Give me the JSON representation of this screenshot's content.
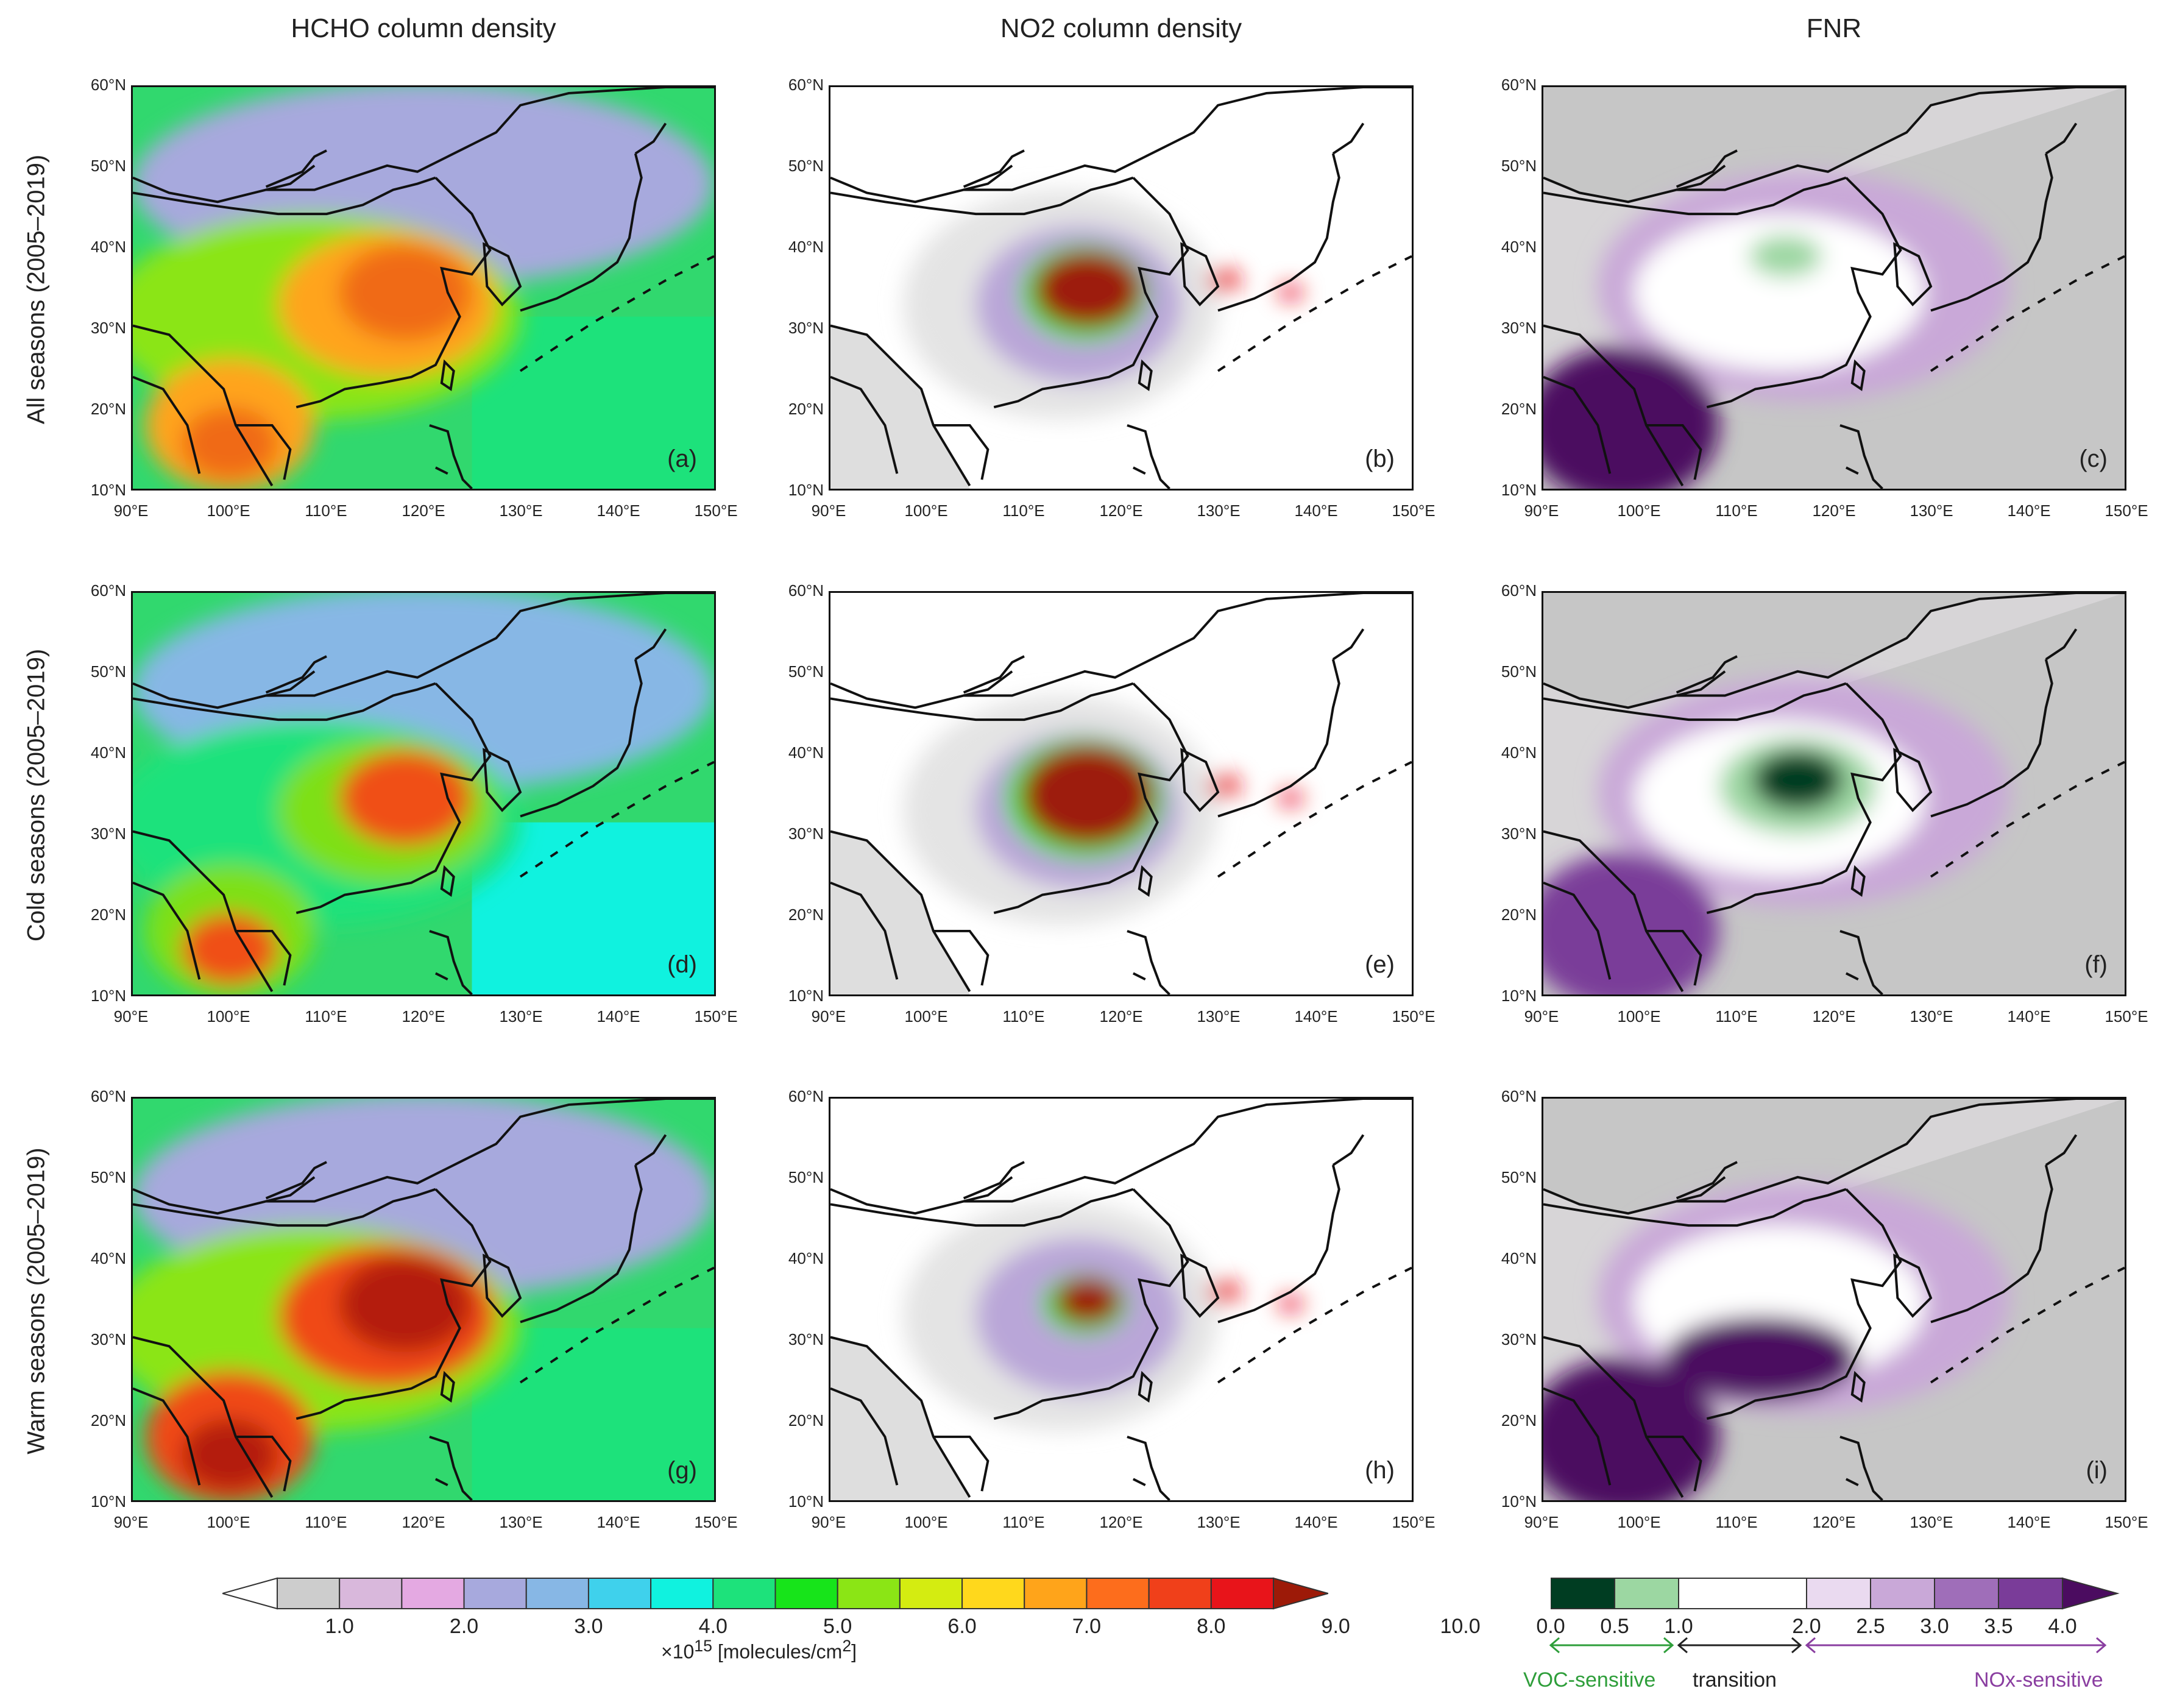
{
  "chart_data": {
    "type": "heatmap",
    "layout": "3x3 map panels",
    "column_titles": [
      "HCHO column density",
      "NO2 column density",
      "FNR"
    ],
    "row_titles": [
      "All seasons (2005–2019)",
      "Cold seasons (2005–2019)",
      "Warm seasons (2005–2019)"
    ],
    "panel_labels": [
      [
        "(a)",
        "(b)",
        "(c)"
      ],
      [
        "(d)",
        "(e)",
        "(f)"
      ],
      [
        "(g)",
        "(h)",
        "(i)"
      ]
    ],
    "xaxis": {
      "ticks": [
        "90°E",
        "100°E",
        "110°E",
        "120°E",
        "130°E",
        "140°E",
        "150°E"
      ],
      "range": [
        90,
        150
      ]
    },
    "yaxis": {
      "ticks": [
        "60°N",
        "50°N",
        "40°N",
        "30°N",
        "20°N",
        "10°N"
      ],
      "range": [
        10,
        60
      ]
    },
    "colorbar_density": {
      "labels": [
        "1.0",
        "2.0",
        "3.0",
        "4.0",
        "5.0",
        "6.0",
        "7.0",
        "8.0",
        "9.0",
        "10.0"
      ],
      "colors": [
        "#f2f2f2",
        "#cdcdcd",
        "#d9b8dc",
        "#e4a9e2",
        "#a7a9dd",
        "#87b7e5",
        "#3fd1ec",
        "#10f2df",
        "#1de27b",
        "#17e41a",
        "#8be515",
        "#d4ec11",
        "#ffd81c",
        "#ffa41a",
        "#fd6d1c",
        "#f0401a",
        "#e8141a",
        "#9d1a08"
      ],
      "units_prefix": "×10",
      "units_exponent": "15",
      "units_suffix": " [molecules/cm",
      "units_sup": "2",
      "units_end": "]"
    },
    "colorbar_fnr": {
      "labels": [
        "0.0",
        "0.5",
        "1.0",
        "2.0",
        "2.5",
        "3.0",
        "3.5",
        "4.0"
      ],
      "colors": [
        "#003d22",
        "#9cd7a2",
        "#ffffff",
        "#ffffff",
        "#eadaf0",
        "#c9a8d8",
        "#9f6eb9",
        "#7a3c99",
        "#4b0c60"
      ],
      "regimes": [
        "VOC-sensitive",
        "transition",
        "NOx-sensitive"
      ],
      "regime_colors": [
        "#2e9e3a",
        "#222222",
        "#8a3ea0"
      ]
    }
  }
}
